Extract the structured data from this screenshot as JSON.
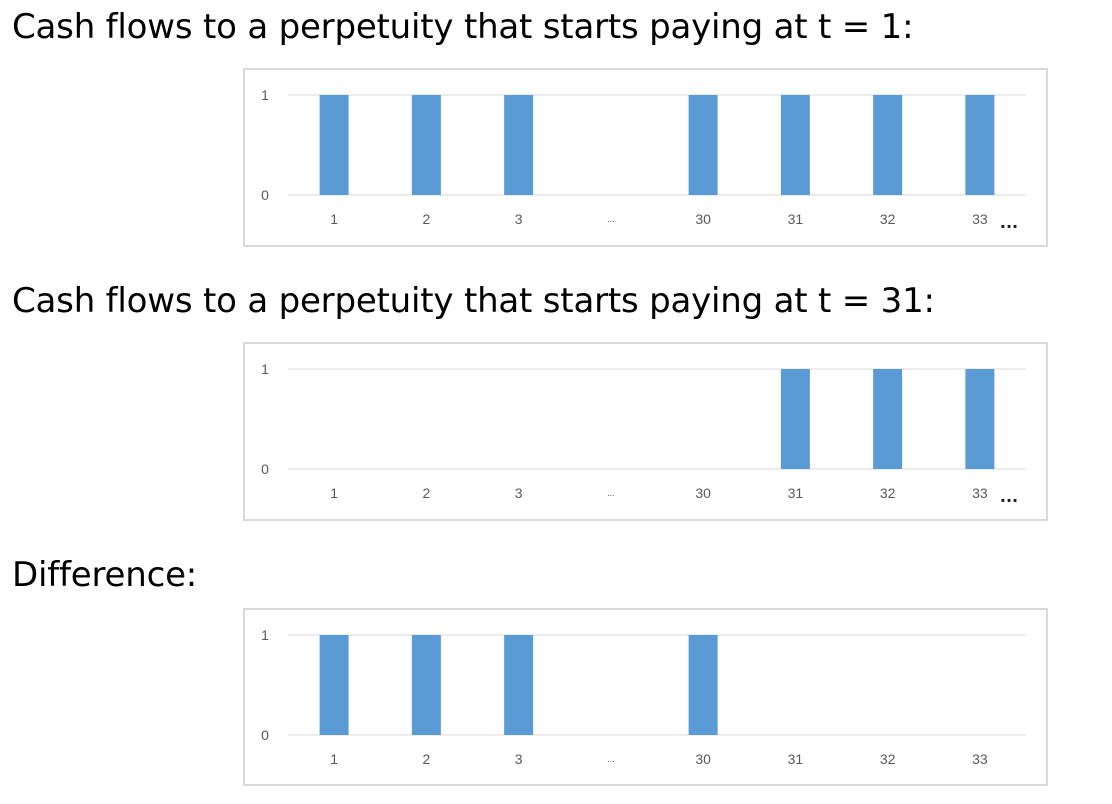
{
  "headings": {
    "first": "Cash flows to a perpetuity that starts paying at t = 1:",
    "second": "Cash flows to a perpetuity that starts paying at t = 31:",
    "third": "Difference:"
  },
  "colors": {
    "bar": "#5b9bd5",
    "grid": "#d9d9d9",
    "tick_text": "#595959"
  },
  "chart_data": [
    {
      "type": "bar",
      "categories": [
        "1",
        "2",
        "3",
        "...",
        "30",
        "31",
        "32",
        "33"
      ],
      "values": [
        1,
        1,
        1,
        0,
        1,
        1,
        1,
        1
      ],
      "y_ticks": [
        "0",
        "1"
      ],
      "ylim": [
        0,
        1
      ],
      "grid": true,
      "continuation": "..."
    },
    {
      "type": "bar",
      "categories": [
        "1",
        "2",
        "3",
        "...",
        "30",
        "31",
        "32",
        "33"
      ],
      "values": [
        0,
        0,
        0,
        0,
        0,
        1,
        1,
        1
      ],
      "y_ticks": [
        "0",
        "1"
      ],
      "ylim": [
        0,
        1
      ],
      "grid": true,
      "continuation": "..."
    },
    {
      "type": "bar",
      "categories": [
        "1",
        "2",
        "3",
        "...",
        "30",
        "31",
        "32",
        "33"
      ],
      "values": [
        1,
        1,
        1,
        0,
        1,
        0,
        0,
        0
      ],
      "y_ticks": [
        "0",
        "1"
      ],
      "ylim": [
        0,
        1
      ],
      "grid": true,
      "continuation": ""
    }
  ]
}
